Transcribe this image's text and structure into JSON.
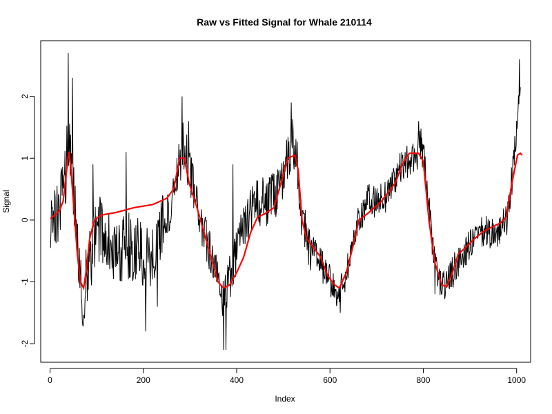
{
  "chart_data": {
    "type": "line",
    "title": "Raw vs Fitted Signal for Whale 210114",
    "xlabel": "Index",
    "ylabel": "Signal",
    "xlim": [
      -20,
      1030
    ],
    "ylim": [
      -2.3,
      2.9
    ],
    "x_ticks": [
      0,
      200,
      400,
      600,
      800,
      1000
    ],
    "y_ticks": [
      -2,
      -1,
      0,
      1,
      2
    ],
    "x_tick_labels": [
      "0",
      "200",
      "400",
      "600",
      "800",
      "1000"
    ],
    "y_tick_labels": [
      "-2",
      "-1",
      "0",
      "1",
      "2"
    ],
    "grid": false,
    "legend": "none",
    "series": [
      {
        "role": "raw",
        "color": "#000000",
        "n": 1008,
        "trend": [
          [
            1,
            0.0
          ],
          [
            20,
            0.15
          ],
          [
            30,
            0.5
          ],
          [
            40,
            1.3
          ],
          [
            50,
            0.5
          ],
          [
            60,
            -0.7
          ],
          [
            70,
            -1.2
          ],
          [
            80,
            -0.9
          ],
          [
            100,
            -0.1
          ],
          [
            120,
            -0.3
          ],
          [
            150,
            -0.5
          ],
          [
            170,
            -0.4
          ],
          [
            190,
            -0.5
          ],
          [
            210,
            -0.6
          ],
          [
            230,
            -0.3
          ],
          [
            250,
            0.0
          ],
          [
            270,
            0.6
          ],
          [
            285,
            1.2
          ],
          [
            300,
            0.8
          ],
          [
            320,
            0.0
          ],
          [
            340,
            -0.5
          ],
          [
            360,
            -1.0
          ],
          [
            375,
            -1.3
          ],
          [
            390,
            -0.8
          ],
          [
            410,
            -0.2
          ],
          [
            440,
            0.3
          ],
          [
            470,
            0.3
          ],
          [
            490,
            0.5
          ],
          [
            505,
            0.9
          ],
          [
            520,
            1.3
          ],
          [
            530,
            0.9
          ],
          [
            540,
            0.0
          ],
          [
            560,
            -0.5
          ],
          [
            580,
            -0.7
          ],
          [
            600,
            -1.0
          ],
          [
            620,
            -1.2
          ],
          [
            640,
            -0.7
          ],
          [
            660,
            0.0
          ],
          [
            680,
            0.3
          ],
          [
            700,
            0.3
          ],
          [
            720,
            0.4
          ],
          [
            740,
            0.7
          ],
          [
            760,
            0.9
          ],
          [
            780,
            1.0
          ],
          [
            795,
            1.2
          ],
          [
            805,
            0.8
          ],
          [
            820,
            -0.5
          ],
          [
            840,
            -1.1
          ],
          [
            860,
            -0.9
          ],
          [
            880,
            -0.6
          ],
          [
            900,
            -0.4
          ],
          [
            930,
            -0.2
          ],
          [
            960,
            -0.2
          ],
          [
            980,
            0.0
          ],
          [
            995,
            1.0
          ],
          [
            1008,
            2.1
          ]
        ],
        "spikes": [
          [
            39,
            2.7
          ],
          [
            48,
            2.3
          ],
          [
            70,
            -1.7
          ],
          [
            92,
            0.9
          ],
          [
            163,
            1.1
          ],
          [
            205,
            -1.8
          ],
          [
            230,
            -1.4
          ],
          [
            283,
            2.0
          ],
          [
            297,
            1.6
          ],
          [
            372,
            -2.1
          ],
          [
            377,
            -2.1
          ],
          [
            392,
            0.9
          ],
          [
            517,
            1.9
          ],
          [
            622,
            -1.5
          ],
          [
            790,
            1.6
          ],
          [
            825,
            -1.2
          ],
          [
            1006,
            2.6
          ]
        ]
      },
      {
        "role": "fitted",
        "color": "#ff0000",
        "points": [
          [
            1,
            0.02
          ],
          [
            10,
            0.08
          ],
          [
            20,
            0.15
          ],
          [
            28,
            0.3
          ],
          [
            34,
            0.7
          ],
          [
            40,
            1.1
          ],
          [
            44,
            0.9
          ],
          [
            50,
            0.3
          ],
          [
            58,
            -0.5
          ],
          [
            65,
            -1.0
          ],
          [
            72,
            -1.1
          ],
          [
            78,
            -0.8
          ],
          [
            85,
            -0.3
          ],
          [
            95,
            0.0
          ],
          [
            110,
            0.08
          ],
          [
            140,
            0.12
          ],
          [
            180,
            0.2
          ],
          [
            220,
            0.25
          ],
          [
            250,
            0.35
          ],
          [
            265,
            0.5
          ],
          [
            278,
            1.0
          ],
          [
            288,
            1.0
          ],
          [
            298,
            0.6
          ],
          [
            315,
            0.2
          ],
          [
            330,
            -0.2
          ],
          [
            345,
            -0.6
          ],
          [
            360,
            -1.0
          ],
          [
            372,
            -1.1
          ],
          [
            385,
            -1.05
          ],
          [
            400,
            -0.85
          ],
          [
            415,
            -0.6
          ],
          [
            430,
            -0.2
          ],
          [
            445,
            0.05
          ],
          [
            460,
            0.1
          ],
          [
            480,
            0.2
          ],
          [
            495,
            0.6
          ],
          [
            510,
            1.0
          ],
          [
            525,
            1.05
          ],
          [
            532,
            0.8
          ],
          [
            540,
            0.0
          ],
          [
            550,
            -0.3
          ],
          [
            565,
            -0.45
          ],
          [
            580,
            -0.6
          ],
          [
            595,
            -0.9
          ],
          [
            610,
            -1.05
          ],
          [
            620,
            -1.1
          ],
          [
            635,
            -0.85
          ],
          [
            650,
            -0.4
          ],
          [
            662,
            0.0
          ],
          [
            680,
            0.1
          ],
          [
            710,
            0.3
          ],
          [
            740,
            0.6
          ],
          [
            755,
            0.9
          ],
          [
            770,
            1.08
          ],
          [
            790,
            1.08
          ],
          [
            800,
            0.95
          ],
          [
            812,
            0.0
          ],
          [
            825,
            -0.7
          ],
          [
            840,
            -1.05
          ],
          [
            850,
            -1.08
          ],
          [
            860,
            -0.9
          ],
          [
            875,
            -0.55
          ],
          [
            890,
            -0.45
          ],
          [
            910,
            -0.3
          ],
          [
            930,
            -0.18
          ],
          [
            950,
            -0.1
          ],
          [
            965,
            -0.05
          ],
          [
            978,
            0.05
          ],
          [
            990,
            0.6
          ],
          [
            1002,
            1.05
          ],
          [
            1008,
            1.08
          ],
          [
            1012,
            1.05
          ]
        ]
      }
    ]
  }
}
